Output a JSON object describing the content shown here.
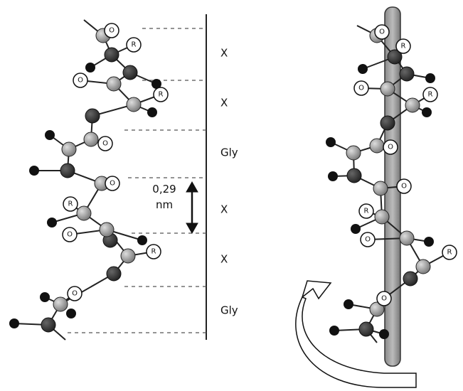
{
  "segments": [
    "X",
    "X",
    "Gly",
    "X",
    "X",
    "Gly"
  ],
  "spacing": {
    "value": "0,29",
    "unit": "nm"
  },
  "left_labels": [
    "O",
    "R",
    "O",
    "R",
    "O",
    "O",
    "R",
    "O",
    "R",
    "O"
  ],
  "right_labels": [
    "O",
    "R",
    "O",
    "R",
    "O",
    "O",
    "R",
    "O",
    "R",
    "O"
  ]
}
